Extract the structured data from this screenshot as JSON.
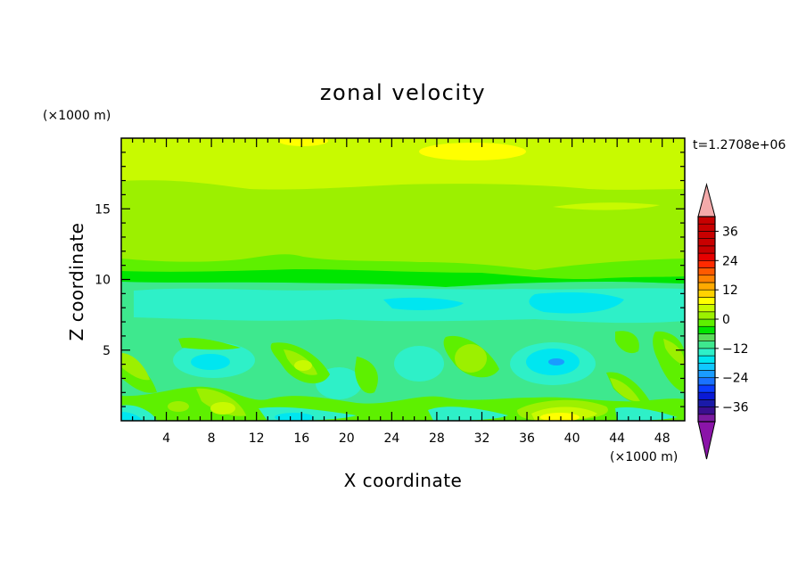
{
  "chart_data": {
    "type": "heatmap",
    "title": "zonal velocity",
    "xlabel": "X coordinate",
    "ylabel": "Z coordinate",
    "x_unit": "(×1000 m)",
    "y_unit": "(×1000 m)",
    "time_label": "t=1.2708e+06",
    "xlim": [
      0,
      50
    ],
    "ylim": [
      0,
      20
    ],
    "x_ticks": [
      4,
      8,
      12,
      16,
      20,
      24,
      28,
      32,
      36,
      40,
      44,
      48
    ],
    "y_ticks": [
      5,
      10,
      15
    ],
    "colorbar": {
      "levels": [
        -42,
        -39,
        -36,
        -33,
        -30,
        -27,
        -24,
        -21,
        -18,
        -15,
        -12,
        -9,
        -6,
        -3,
        0,
        3,
        6,
        9,
        12,
        15,
        18,
        21,
        24,
        27,
        30,
        33,
        36,
        39,
        42
      ],
      "labels": [
        "36",
        "24",
        "12",
        "0",
        "−12",
        "−24",
        "−36"
      ],
      "label_values": [
        36,
        24,
        12,
        0,
        -12,
        -24,
        -36
      ],
      "min_color": "#8a14a8",
      "max_color": "#f4aaaa",
      "colors": [
        "#7a1aa0",
        "#3a0f8f",
        "#1a1aa8",
        "#0a1ad6",
        "#0a3cff",
        "#1a72ff",
        "#1a9cff",
        "#10c8ff",
        "#00e6f0",
        "#2ef0c8",
        "#3ee88e",
        "#5adc5a",
        "#00e600",
        "#5ef000",
        "#9cf000",
        "#c8fa00",
        "#ffff00",
        "#ffd200",
        "#ffaa00",
        "#ff8200",
        "#ff5a00",
        "#ff2a00",
        "#e60000",
        "#c80000"
      ]
    }
  }
}
